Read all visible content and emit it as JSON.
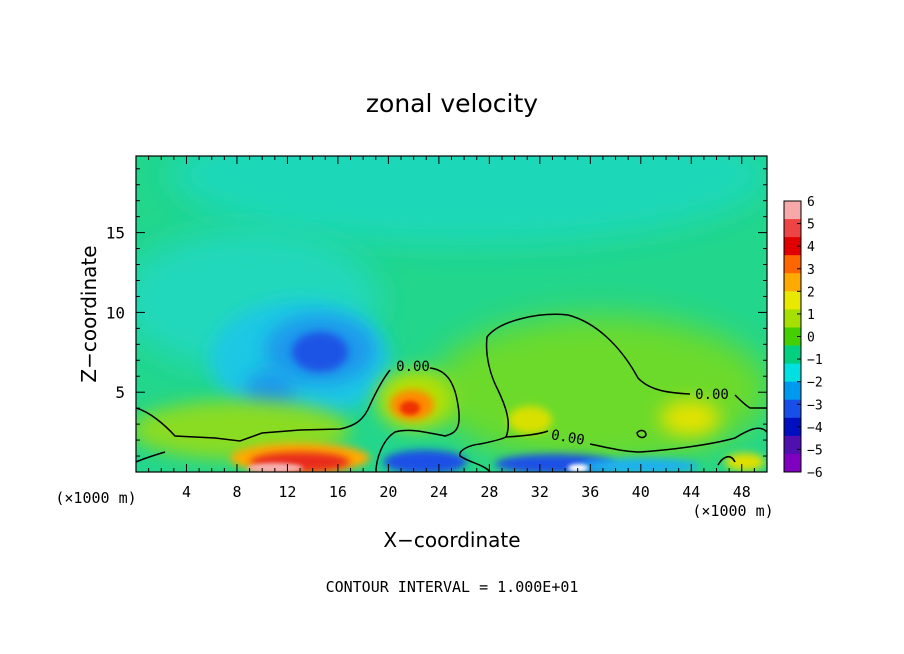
{
  "chart_data": {
    "type": "heatmap",
    "title": "zonal velocity",
    "xlabel": "X−coordinate",
    "ylabel": "Z−coordinate",
    "x_unit": "(×1000 m)",
    "x_unit_right": "(×1000 m)",
    "xlim": [
      0,
      50
    ],
    "ylim": [
      0,
      19.8
    ],
    "x_ticks": [
      4,
      8,
      12,
      16,
      20,
      24,
      28,
      32,
      36,
      40,
      44,
      48
    ],
    "y_ticks": [
      5,
      10,
      15
    ],
    "colorbar": {
      "ticks": [
        "6",
        "5",
        "4",
        "3",
        "2",
        "1",
        "0",
        "−1",
        "−2",
        "−3",
        "−4",
        "−5",
        "−6"
      ],
      "colors": [
        "#f7a8a8",
        "#ee4444",
        "#e00000",
        "#ff6600",
        "#ffaa00",
        "#e8e800",
        "#a6e000",
        "#44d000",
        "#00d080",
        "#00e0e0",
        "#0099f0",
        "#1750e8",
        "#0010c0",
        "#5010b0",
        "#8000c0"
      ]
    },
    "contour_labels": [
      {
        "text": "0.00",
        "x": 22.2,
        "z": 6.5
      },
      {
        "text": "0.00",
        "x": 45.6,
        "z": 4.9
      },
      {
        "text": "0.00",
        "x": 34.6,
        "z": 2.0
      }
    ],
    "features": [
      {
        "name": "upper-level easterly",
        "x": 32,
        "z": 17,
        "value": -1.5
      },
      {
        "name": "mid-level easterly jet core",
        "x": 14.5,
        "z": 7.5,
        "value": -4.5
      },
      {
        "name": "westerly pocket",
        "x": 21.5,
        "z": 3.9,
        "value": 3
      },
      {
        "name": "near-surface westerly",
        "x": 12,
        "z": 0.6,
        "value": 5
      },
      {
        "name": "surface easterly",
        "x": 34,
        "z": 0.4,
        "value": -4.5
      },
      {
        "name": "westerly lobe",
        "x": 43.5,
        "z": 3.2,
        "value": 1.5
      }
    ]
  },
  "footer": "CONTOUR INTERVAL = 1.000E+01"
}
